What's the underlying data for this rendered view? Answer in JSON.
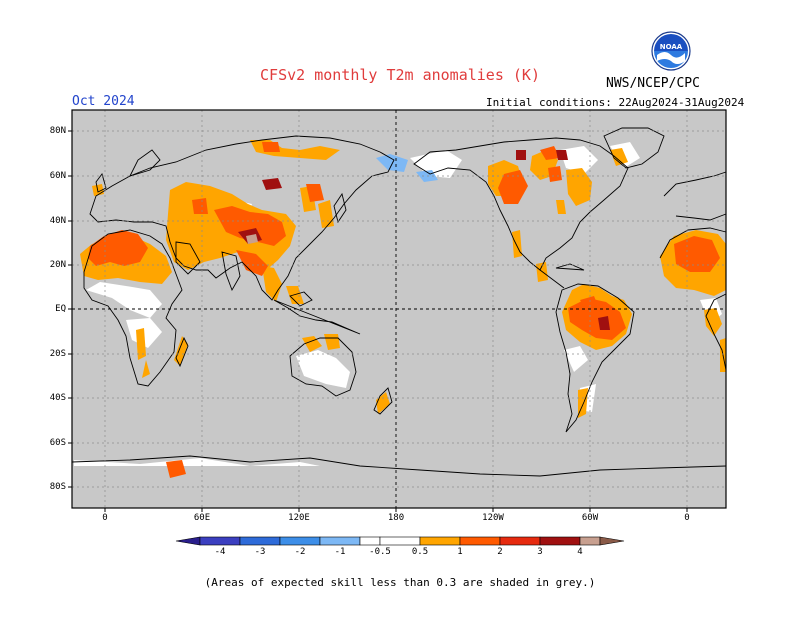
{
  "header": {
    "title": "CFSv2 monthly T2m anomalies (K)",
    "agency": "NWS/NCEP/CPC",
    "period": "Oct 2024",
    "initial_conditions": "Initial conditions: 22Aug2024-31Aug2024",
    "logo_icon": "noaa-logo"
  },
  "axes": {
    "lat_labels": [
      "80N",
      "60N",
      "40N",
      "20N",
      "EQ",
      "20S",
      "40S",
      "60S",
      "80S"
    ],
    "lon_labels": [
      "0",
      "60E",
      "120E",
      "180",
      "120W",
      "60W",
      "0"
    ]
  },
  "colorbar": {
    "tick_labels": [
      "-4",
      "-3",
      "-2",
      "-1",
      "-0.5",
      "0.5",
      "1",
      "2",
      "3",
      "4"
    ],
    "colors": {
      "below_-4": "#2a1e8c",
      "-4_-3": "#3b3fc0",
      "-3_-2": "#2e6bd9",
      "-2_-1": "#3d8ee8",
      "-1_-0.5": "#7db8f5",
      "-0.5_0.5": "#ffffff",
      "0.5_1": "#ffa500",
      "1_2": "#ff5a00",
      "2_3": "#e62a0f",
      "3_4": "#a01010",
      "4_5": "#c8a090",
      "above_5": "#8a5a48"
    }
  },
  "map": {
    "background_color": "#c8c8c8",
    "low_skill_color": "#c8c8c8"
  },
  "footer": {
    "note": "(Areas of expected skill less than 0.3 are shaded in grey.)"
  }
}
